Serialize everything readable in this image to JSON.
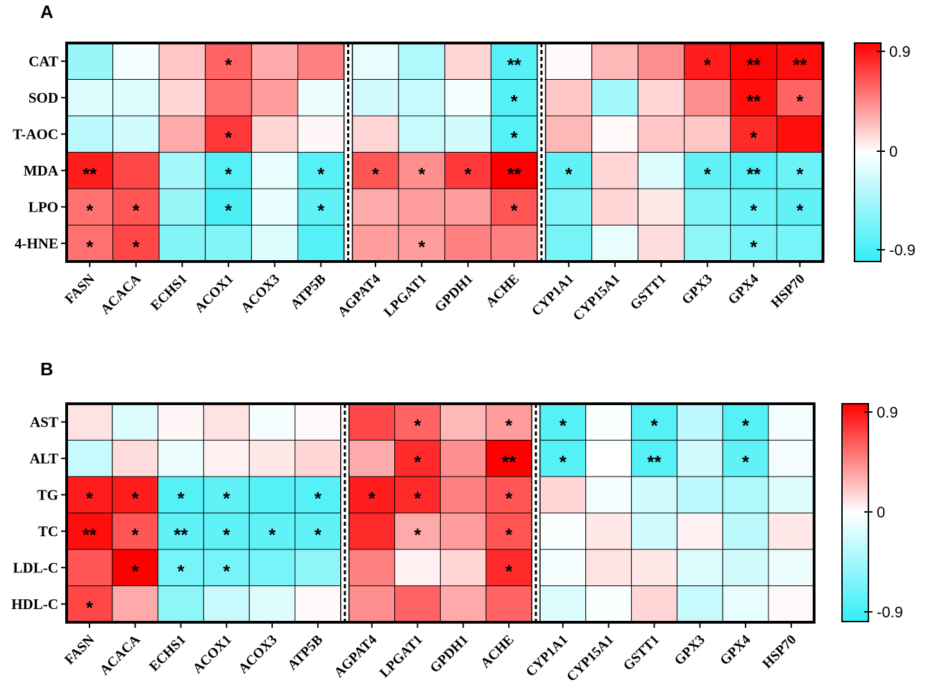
{
  "chart_data": [
    {
      "type": "heatmap",
      "panel": "A",
      "rows": [
        "CAT",
        "SOD",
        "T-AOC",
        "MDA",
        "LPO",
        "4-HNE"
      ],
      "columns": [
        "FASN",
        "ACACA",
        "ECHS1",
        "ACOX1",
        "ACOX3",
        "ATP5B",
        "AGPAT4",
        "LPGAT1",
        "GPDH1",
        "ACHE",
        "CYP1A1",
        "CYP15A1",
        "GSTT1",
        "GPX3",
        "GPX4",
        "HSP70"
      ],
      "column_groups": [
        6,
        4,
        6
      ],
      "values": [
        [
          -0.45,
          -0.05,
          0.2,
          0.55,
          0.3,
          0.45,
          -0.1,
          -0.35,
          0.15,
          -0.75,
          0.02,
          0.25,
          0.4,
          0.8,
          0.88,
          0.85
        ],
        [
          -0.15,
          -0.15,
          0.15,
          0.5,
          0.35,
          -0.08,
          -0.2,
          -0.25,
          -0.05,
          -0.75,
          0.2,
          -0.4,
          0.15,
          0.4,
          0.85,
          0.55
        ],
        [
          -0.3,
          -0.2,
          0.3,
          0.7,
          0.15,
          0.03,
          0.15,
          -0.25,
          -0.2,
          -0.75,
          0.25,
          0.02,
          0.2,
          0.2,
          0.75,
          0.85
        ],
        [
          0.8,
          0.65,
          -0.4,
          -0.75,
          -0.1,
          -0.75,
          0.6,
          0.4,
          0.7,
          0.95,
          -0.7,
          0.15,
          -0.15,
          -0.7,
          -0.75,
          -0.65
        ],
        [
          0.5,
          0.6,
          -0.45,
          -0.8,
          -0.1,
          -0.7,
          0.3,
          0.35,
          0.35,
          0.6,
          -0.55,
          0.15,
          0.08,
          -0.55,
          -0.65,
          -0.7
        ],
        [
          0.5,
          0.65,
          -0.55,
          -0.55,
          -0.15,
          -0.75,
          0.35,
          0.35,
          0.45,
          0.45,
          -0.6,
          -0.1,
          0.12,
          -0.5,
          -0.6,
          -0.6
        ]
      ],
      "significance": [
        [
          "",
          "",
          "",
          "*",
          "",
          "",
          "",
          "",
          "",
          "**",
          "",
          "",
          "",
          "*",
          "**",
          "**"
        ],
        [
          "",
          "",
          "",
          "",
          "",
          "",
          "",
          "",
          "",
          "*",
          "",
          "",
          "",
          "",
          "**",
          "*"
        ],
        [
          "",
          "",
          "",
          "*",
          "",
          "",
          "",
          "",
          "",
          "*",
          "",
          "",
          "",
          "",
          "*",
          ""
        ],
        [
          "**",
          "",
          "",
          "*",
          "",
          "*",
          "*",
          "*",
          "*",
          "**",
          "*",
          "",
          "",
          "*",
          "**",
          "*"
        ],
        [
          "*",
          "*",
          "",
          "*",
          "",
          "*",
          "",
          "",
          "",
          "*",
          "",
          "",
          "",
          "",
          "*",
          "*"
        ],
        [
          "*",
          "*",
          "",
          "",
          "",
          "",
          "",
          "*",
          "",
          "",
          "",
          "",
          "",
          "",
          "*",
          ""
        ]
      ],
      "colorbar": {
        "max_label": "0.9",
        "mid_label": "0",
        "min_label": "-0.9",
        "max": 0.9,
        "min": -0.9
      }
    },
    {
      "type": "heatmap",
      "panel": "B",
      "rows": [
        "AST",
        "ALT",
        "TG",
        "TC",
        "LDL-C",
        "HDL-C"
      ],
      "columns": [
        "FASN",
        "ACACA",
        "ECHS1",
        "ACOX1",
        "ACOX3",
        "ATP5B",
        "AGPAT4",
        "LPGAT1",
        "GPDH1",
        "ACHE",
        "CYP1A1",
        "CYP15A1",
        "GSTT1",
        "GPX3",
        "GPX4",
        "HSP70"
      ],
      "column_groups": [
        6,
        4,
        6
      ],
      "values": [
        [
          0.1,
          -0.15,
          0.03,
          0.1,
          -0.05,
          0.02,
          0.65,
          0.55,
          0.25,
          0.35,
          -0.75,
          -0.02,
          -0.75,
          -0.3,
          -0.75,
          -0.05
        ],
        [
          -0.25,
          0.12,
          -0.08,
          0.05,
          0.08,
          0.15,
          0.3,
          0.75,
          0.4,
          0.95,
          -0.75,
          0.0,
          -0.75,
          -0.2,
          -0.7,
          -0.05
        ],
        [
          0.8,
          0.8,
          -0.75,
          -0.7,
          -0.75,
          -0.75,
          0.8,
          0.75,
          0.45,
          0.6,
          0.15,
          -0.05,
          -0.2,
          -0.3,
          -0.35,
          -0.15
        ],
        [
          0.85,
          0.6,
          -0.7,
          -0.7,
          -0.7,
          -0.7,
          0.75,
          0.3,
          0.35,
          0.6,
          -0.02,
          0.08,
          -0.2,
          0.05,
          -0.3,
          0.08
        ],
        [
          0.6,
          0.95,
          -0.6,
          -0.6,
          -0.6,
          -0.5,
          0.45,
          0.05,
          0.15,
          0.75,
          -0.05,
          0.1,
          0.08,
          -0.15,
          -0.2,
          -0.08
        ],
        [
          0.65,
          0.3,
          -0.5,
          -0.25,
          -0.15,
          0.02,
          0.4,
          0.55,
          0.3,
          0.55,
          -0.15,
          -0.02,
          0.15,
          -0.25,
          -0.1,
          0.02
        ]
      ],
      "significance": [
        [
          "",
          "",
          "",
          "",
          "",
          "",
          "",
          "*",
          "",
          "*",
          "*",
          "",
          "*",
          "",
          "*",
          ""
        ],
        [
          "",
          "",
          "",
          "",
          "",
          "",
          "",
          "*",
          "",
          "**",
          "*",
          "",
          "**",
          "",
          "*",
          ""
        ],
        [
          "*",
          "*",
          "*",
          "*",
          "",
          "*",
          "*",
          "*",
          "",
          "*",
          "",
          "",
          "",
          "",
          "",
          ""
        ],
        [
          "**",
          "*",
          "**",
          "*",
          "*",
          "*",
          "",
          "*",
          "",
          "*",
          "",
          "",
          "",
          "",
          "",
          ""
        ],
        [
          "",
          "*",
          "*",
          "*",
          "",
          "",
          "",
          "",
          "",
          "*",
          "",
          "",
          "",
          "",
          "",
          ""
        ],
        [
          "*",
          "",
          "",
          "",
          "",
          "",
          "",
          "",
          "",
          "",
          "",
          "",
          "",
          "",
          "",
          ""
        ]
      ],
      "colorbar": {
        "max_label": "0.9",
        "mid_label": "0",
        "min_label": "-0.9",
        "max": 0.9,
        "min": -0.9
      }
    }
  ],
  "colors": {
    "positive": "#ff0000",
    "zero": "#ffffff",
    "negative": "#33eef5"
  }
}
